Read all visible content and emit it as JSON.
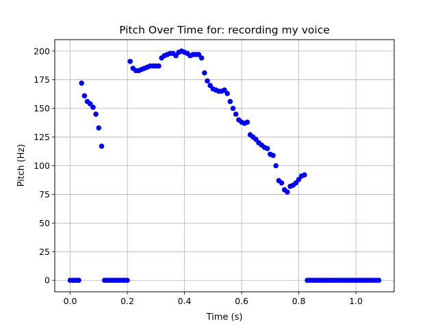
{
  "chart_data": {
    "type": "scatter",
    "title": "Pitch Over Time for: recording my voice",
    "xlabel": "Time (s)",
    "ylabel": "Pitch (Hz)",
    "xlim": [
      -0.054,
      1.134
    ],
    "ylim": [
      -10,
      210
    ],
    "xticks": [
      0.0,
      0.2,
      0.4,
      0.6,
      0.8,
      1.0
    ],
    "xtick_labels": [
      "0.0",
      "0.2",
      "0.4",
      "0.6",
      "0.8",
      "1.0"
    ],
    "yticks": [
      0,
      25,
      50,
      75,
      100,
      125,
      150,
      175,
      200
    ],
    "ytick_labels": [
      "0",
      "25",
      "50",
      "75",
      "100",
      "125",
      "150",
      "175",
      "200"
    ],
    "grid": true,
    "marker_color": "#0000ff",
    "series": [
      {
        "points": [
          [
            0.0,
            0
          ],
          [
            0.01,
            0
          ],
          [
            0.02,
            0
          ],
          [
            0.03,
            0
          ],
          [
            0.04,
            172
          ],
          [
            0.05,
            161
          ],
          [
            0.06,
            156
          ],
          [
            0.07,
            154
          ],
          [
            0.08,
            151
          ],
          [
            0.09,
            145
          ],
          [
            0.1,
            133
          ],
          [
            0.11,
            117
          ],
          [
            0.12,
            0
          ],
          [
            0.13,
            0
          ],
          [
            0.14,
            0
          ],
          [
            0.15,
            0
          ],
          [
            0.16,
            0
          ],
          [
            0.17,
            0
          ],
          [
            0.18,
            0
          ],
          [
            0.19,
            0
          ],
          [
            0.2,
            0
          ],
          [
            0.21,
            191
          ],
          [
            0.22,
            185
          ],
          [
            0.23,
            183
          ],
          [
            0.24,
            183
          ],
          [
            0.25,
            184
          ],
          [
            0.26,
            185
          ],
          [
            0.27,
            186
          ],
          [
            0.28,
            187
          ],
          [
            0.29,
            187
          ],
          [
            0.3,
            187
          ],
          [
            0.31,
            187
          ],
          [
            0.32,
            194
          ],
          [
            0.33,
            196
          ],
          [
            0.34,
            197
          ],
          [
            0.35,
            198
          ],
          [
            0.36,
            198
          ],
          [
            0.37,
            196
          ],
          [
            0.38,
            199
          ],
          [
            0.39,
            200
          ],
          [
            0.4,
            199
          ],
          [
            0.41,
            198
          ],
          [
            0.42,
            196
          ],
          [
            0.43,
            197
          ],
          [
            0.44,
            197
          ],
          [
            0.45,
            197
          ],
          [
            0.46,
            194
          ],
          [
            0.47,
            181
          ],
          [
            0.48,
            174
          ],
          [
            0.49,
            170
          ],
          [
            0.5,
            167
          ],
          [
            0.51,
            166
          ],
          [
            0.52,
            165
          ],
          [
            0.53,
            165
          ],
          [
            0.54,
            166
          ],
          [
            0.55,
            163
          ],
          [
            0.56,
            156
          ],
          [
            0.57,
            150
          ],
          [
            0.58,
            145
          ],
          [
            0.59,
            140
          ],
          [
            0.6,
            138
          ],
          [
            0.61,
            137
          ],
          [
            0.62,
            138
          ],
          [
            0.63,
            127
          ],
          [
            0.64,
            125
          ],
          [
            0.65,
            123
          ],
          [
            0.66,
            120
          ],
          [
            0.67,
            118
          ],
          [
            0.68,
            116
          ],
          [
            0.69,
            115
          ],
          [
            0.7,
            110
          ],
          [
            0.71,
            109
          ],
          [
            0.72,
            100
          ],
          [
            0.73,
            87
          ],
          [
            0.74,
            85
          ],
          [
            0.75,
            79
          ],
          [
            0.76,
            77
          ],
          [
            0.77,
            82
          ],
          [
            0.78,
            83
          ],
          [
            0.79,
            85
          ],
          [
            0.8,
            88
          ],
          [
            0.81,
            91
          ],
          [
            0.82,
            92
          ],
          [
            0.83,
            0
          ],
          [
            0.84,
            0
          ],
          [
            0.85,
            0
          ],
          [
            0.86,
            0
          ],
          [
            0.87,
            0
          ],
          [
            0.88,
            0
          ],
          [
            0.89,
            0
          ],
          [
            0.9,
            0
          ],
          [
            0.91,
            0
          ],
          [
            0.92,
            0
          ],
          [
            0.93,
            0
          ],
          [
            0.94,
            0
          ],
          [
            0.95,
            0
          ],
          [
            0.96,
            0
          ],
          [
            0.97,
            0
          ],
          [
            0.98,
            0
          ],
          [
            0.99,
            0
          ],
          [
            1.0,
            0
          ],
          [
            1.01,
            0
          ],
          [
            1.02,
            0
          ],
          [
            1.03,
            0
          ],
          [
            1.04,
            0
          ],
          [
            1.05,
            0
          ],
          [
            1.06,
            0
          ],
          [
            1.07,
            0
          ],
          [
            1.08,
            0
          ]
        ]
      }
    ]
  }
}
